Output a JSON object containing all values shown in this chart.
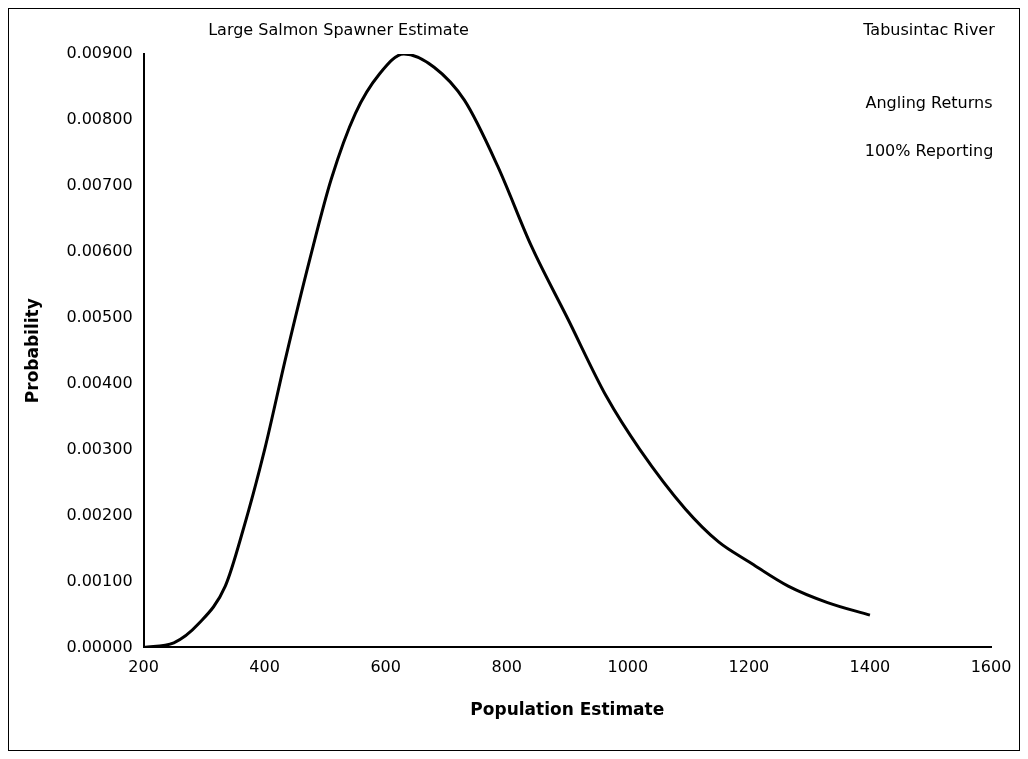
{
  "chart_data": {
    "type": "line",
    "title": "Large Salmon Spawner Estimate",
    "xlabel": "Population Estimate",
    "ylabel": "Probability",
    "annotations": [
      "Tabusintac River",
      "Angling Returns",
      "100% Reporting"
    ],
    "x": [
      200,
      250,
      290,
      335,
      365,
      400,
      435,
      475,
      510,
      550,
      590,
      630,
      680,
      730,
      785,
      840,
      900,
      965,
      1020,
      1095,
      1150,
      1200,
      1265,
      1330,
      1400
    ],
    "series": [
      {
        "color": "#000000",
        "values": [
          0,
          7e-05,
          0.00035,
          0.00093,
          0.0018,
          0.003,
          0.0044,
          0.0059,
          0.0071,
          0.0081,
          0.0087,
          0.009,
          0.0088,
          0.0083,
          0.0073,
          0.0061,
          0.005,
          0.0038,
          0.003,
          0.0021,
          0.0016,
          0.0013,
          0.00093,
          0.00068,
          0.00049
        ]
      }
    ],
    "xlim": [
      200,
      1600
    ],
    "xticks": [
      200,
      400,
      600,
      800,
      1000,
      1200,
      1400,
      1600
    ],
    "ylim": [
      0,
      0.009
    ],
    "yticks": [
      {
        "value": 0,
        "label": "0.00000"
      },
      {
        "value": 0.001,
        "label": "0.00100"
      },
      {
        "value": 0.002,
        "label": "0.00200"
      },
      {
        "value": 0.003,
        "label": "0.00300"
      },
      {
        "value": 0.004,
        "label": "0.00400"
      },
      {
        "value": 0.005,
        "label": "0.00500"
      },
      {
        "value": 0.006,
        "label": "0.00600"
      },
      {
        "value": 0.007,
        "label": "0.00700"
      },
      {
        "value": 0.008,
        "label": "0.00800"
      },
      {
        "value": 0.009,
        "label": "0.00900"
      }
    ],
    "grid": false,
    "legend": false,
    "marker": "none",
    "line_style": "solid"
  }
}
